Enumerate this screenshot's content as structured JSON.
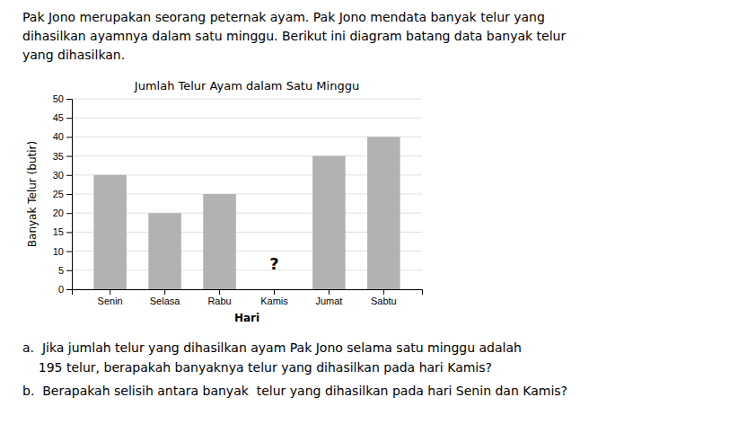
{
  "paragraph": [
    "Pak Jono merupakan seorang peternak ayam. Pak Jono mendata banyak telur yang",
    "dihasilkan ayamnya dalam satu minggu. Berikut ini diagram batang data banyak telur",
    "yang dihasilkan."
  ],
  "questions": [
    "a.  Jika jumlah telur yang dihasilkan ayam Pak Jono selama satu minggu adalah",
    "    195 telur, berapakah banyaknya telur yang dihasilkan pada hari Kamis?",
    "b.  Berapakah selisih antara banyak  telur yang dihasilkan pada hari Senin dan Kamis?"
  ],
  "chart_data": {
    "type": "bar",
    "title": "Jumlah Telur Ayam dalam Satu Minggu",
    "x_label": "Hari",
    "y_label": "Banyak Telur (butir)",
    "categories": [
      "Senin",
      "Selasa",
      "Rabu",
      "Kamis",
      "Jumat",
      "Sabtu"
    ],
    "values": [
      30,
      20,
      25,
      null,
      35,
      40
    ],
    "color": "#b2b2b2",
    "annotations": [
      "?"
    ],
    "ylim": [
      0,
      50
    ],
    "yticks": [
      0,
      5,
      10,
      15,
      20,
      25,
      30,
      35,
      40,
      45,
      50
    ],
    "grid": true
  }
}
